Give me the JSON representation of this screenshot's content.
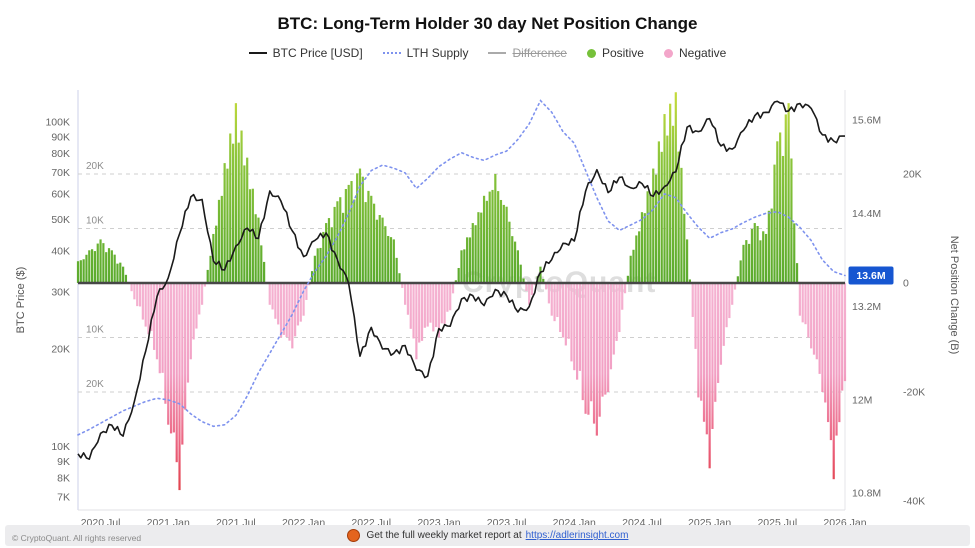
{
  "title": "BTC: Long-Term Holder 30 day Net Position Change",
  "watermark": "CryptoQuant",
  "legend": [
    {
      "label": "BTC Price [USD]",
      "type": "line",
      "color": "#1a1a1a",
      "disabled": false
    },
    {
      "label": "LTH Supply",
      "type": "dotted",
      "color": "#7e92ee",
      "disabled": false
    },
    {
      "label": "Difference",
      "type": "line",
      "color": "#aaaaaa",
      "disabled": true
    },
    {
      "label": "Positive",
      "type": "dot",
      "color": "#76c13a",
      "disabled": false
    },
    {
      "label": "Negative",
      "type": "dot",
      "color": "#f3a6ca",
      "disabled": false
    }
  ],
  "current_value_badge": {
    "label": "13.6M",
    "color": "#1656d1"
  },
  "footer": {
    "copyright": "© CryptoQuant. All rights reserved",
    "report_text": "Get the full weekly market report at",
    "report_link": "https://adlerinsight.com"
  },
  "axes": {
    "left": {
      "title": "BTC Price ($)",
      "tick_labels": [
        "100K",
        "90K",
        "80K",
        "70K",
        "60K",
        "50K",
        "40K",
        "30K",
        "20K",
        "10K",
        "9K",
        "8K",
        "7K"
      ],
      "tick_values": [
        100000,
        90000,
        80000,
        70000,
        60000,
        50000,
        40000,
        30000,
        20000,
        10000,
        9000,
        8000,
        7000
      ]
    },
    "right_supply": {
      "tick_labels": [
        "15.6M",
        "14.4M",
        "13.2M",
        "12M",
        "10.8M"
      ],
      "tick_values": [
        15.6,
        14.4,
        13.2,
        12.0,
        10.8
      ]
    },
    "right_npc": {
      "title": "Net Position Change (B)",
      "tick_labels": [
        "20K",
        "0",
        "-20K",
        "-40K"
      ],
      "tick_values": [
        20,
        0,
        -20,
        -40
      ]
    },
    "inner_gridlines": {
      "labels": [
        "20K",
        "10K",
        "10K",
        "20K"
      ],
      "values": [
        20,
        10,
        -10,
        -20
      ]
    },
    "x": {
      "tick_labels": [
        "2020 Jul",
        "2021 Jan",
        "2021 Jul",
        "2022 Jan",
        "2022 Jul",
        "2023 Jan",
        "2023 Jul",
        "2024 Jan",
        "2024 Jul",
        "2025 Jan",
        "2025 Jul",
        "2026 Jan"
      ],
      "tick_month_index": [
        2,
        8,
        14,
        20,
        26,
        32,
        38,
        44,
        50,
        56,
        62,
        68
      ]
    }
  },
  "chart_data": {
    "type": "mixed",
    "x_months": [
      "2020-05",
      "2020-06",
      "2020-07",
      "2020-08",
      "2020-09",
      "2020-10",
      "2020-11",
      "2020-12",
      "2021-01",
      "2021-02",
      "2021-03",
      "2021-04",
      "2021-05",
      "2021-06",
      "2021-07",
      "2021-08",
      "2021-09",
      "2021-10",
      "2021-11",
      "2021-12",
      "2022-01",
      "2022-02",
      "2022-03",
      "2022-04",
      "2022-05",
      "2022-06",
      "2022-07",
      "2022-08",
      "2022-09",
      "2022-10",
      "2022-11",
      "2022-12",
      "2023-01",
      "2023-02",
      "2023-03",
      "2023-04",
      "2023-05",
      "2023-06",
      "2023-07",
      "2023-08",
      "2023-09",
      "2023-10",
      "2023-11",
      "2023-12",
      "2024-01",
      "2024-02",
      "2024-03",
      "2024-04",
      "2024-05",
      "2024-06",
      "2024-07",
      "2024-08",
      "2024-09",
      "2024-10",
      "2024-11",
      "2024-12",
      "2025-01",
      "2025-02",
      "2025-03",
      "2025-04",
      "2025-05",
      "2025-06",
      "2025-07",
      "2025-08",
      "2025-09",
      "2025-10",
      "2025-11",
      "2025-12",
      "2026-01"
    ],
    "series": [
      {
        "name": "BTC Price [USD]",
        "type": "line",
        "axis": "left-log",
        "unit": "USD",
        "color": "#1a1a1a",
        "values": [
          9500,
          9150,
          11000,
          11650,
          10780,
          13800,
          19700,
          29000,
          33100,
          45200,
          58800,
          57700,
          37300,
          35000,
          41500,
          47100,
          43800,
          61300,
          57000,
          46200,
          38500,
          43200,
          45500,
          37700,
          31800,
          19000,
          23300,
          20000,
          19400,
          20500,
          17200,
          16500,
          23100,
          23500,
          28500,
          29200,
          27200,
          30500,
          29200,
          26000,
          27000,
          34500,
          37700,
          42300,
          43000,
          61200,
          71300,
          60600,
          67500,
          62700,
          64600,
          59100,
          63300,
          70200,
          96400,
          93400,
          102400,
          84400,
          82500,
          94200,
          104600,
          107100,
          115800,
          108200,
          114000,
          110100,
          91300,
          87400,
          90500
        ]
      },
      {
        "name": "LTH Supply",
        "type": "dotted-line",
        "axis": "right-supply",
        "unit": "M BTC",
        "color": "#7e92ee",
        "values": [
          11.55,
          11.62,
          11.7,
          11.78,
          11.86,
          11.92,
          11.98,
          12.02,
          12.0,
          11.95,
          11.82,
          11.72,
          11.66,
          11.68,
          11.8,
          12.05,
          12.35,
          12.6,
          12.85,
          13.1,
          13.4,
          13.65,
          13.85,
          14.1,
          14.4,
          14.75,
          14.95,
          15.02,
          14.98,
          14.92,
          14.72,
          14.85,
          15.0,
          15.1,
          15.18,
          15.12,
          15.08,
          15.15,
          15.2,
          15.35,
          15.55,
          15.85,
          15.7,
          15.45,
          15.3,
          14.95,
          14.6,
          14.3,
          14.18,
          14.25,
          14.32,
          14.45,
          14.65,
          14.6,
          14.4,
          14.22,
          14.08,
          14.15,
          14.2,
          14.28,
          14.35,
          14.4,
          14.42,
          14.35,
          14.22,
          14.05,
          13.8,
          13.65,
          13.6
        ]
      },
      {
        "name": "Net Position Change",
        "type": "area-bars",
        "axis": "right-npc",
        "unit": "K BTC",
        "positive_color": "#6abf35",
        "negative_color": "#f7a8cb",
        "deep_negative_color": "#dd3636",
        "values": [
          4,
          6,
          8,
          6,
          3,
          -3,
          -8,
          -14,
          -26,
          -38,
          -14,
          -4,
          9,
          22,
          33,
          23,
          12,
          -4,
          -10,
          -12,
          -6,
          5,
          11,
          15,
          18,
          21,
          16,
          12,
          8,
          -4,
          -14,
          -8,
          -10,
          -5,
          6,
          11,
          16,
          20,
          14,
          6,
          -4,
          3,
          -6,
          -10,
          -16,
          -24,
          -28,
          -20,
          -9,
          5,
          13,
          21,
          31,
          35,
          8,
          -21,
          -34,
          -15,
          -4,
          7,
          11,
          9,
          26,
          33,
          -6,
          -12,
          -20,
          -36,
          -18
        ]
      }
    ],
    "axis_ranges": {
      "left_price_log_usd": [
        7000,
        126000
      ],
      "right_supply_m": [
        10.45,
        16.0
      ],
      "right_npc_k": [
        -41.6,
        35.4
      ]
    },
    "grid": "horizontal-dashed",
    "legend_position": "top-center"
  }
}
